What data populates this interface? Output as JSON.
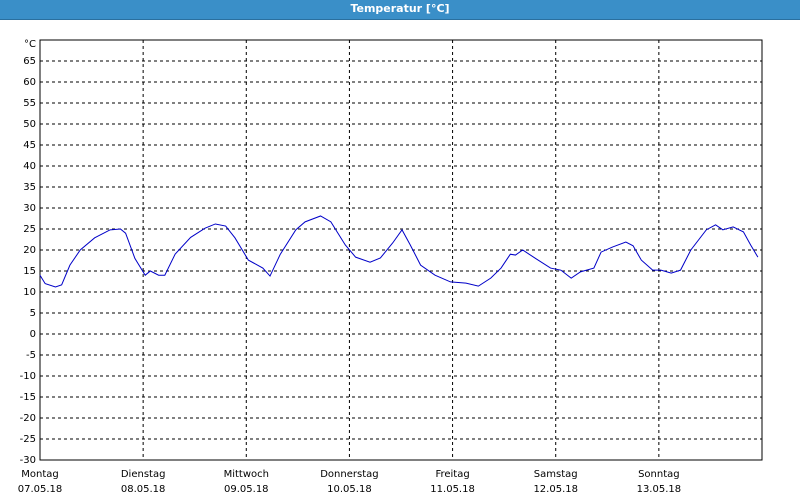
{
  "chart_data": {
    "type": "line",
    "title": "Temperatur [°C]",
    "y_unit": "°C",
    "xlim": [
      0,
      7
    ],
    "xticks": [
      {
        "value": 0,
        "label": "Montag"
      },
      {
        "value": 1,
        "label": "Dienstag"
      },
      {
        "value": 2,
        "label": "Mittwoch"
      },
      {
        "value": 3,
        "label": "Donnerstag"
      },
      {
        "value": 4,
        "label": "Freitag"
      },
      {
        "value": 5,
        "label": "Samstag"
      },
      {
        "value": 6,
        "label": "Sonntag"
      }
    ],
    "x_dates": [
      "07.05.18",
      "08.05.18",
      "09.05.18",
      "10.05.18",
      "11.05.18",
      "12.05.18",
      "13.05.18"
    ],
    "ylim": [
      -30,
      70
    ],
    "yticks": [
      -30,
      -25,
      -20,
      -15,
      -10,
      -5,
      0,
      5,
      10,
      15,
      20,
      25,
      30,
      35,
      40,
      45,
      50,
      55,
      60,
      65
    ],
    "grid": true,
    "x": [
      0,
      0.05,
      0.15,
      0.21,
      0.29,
      0.39,
      0.53,
      0.68,
      0.78,
      0.83,
      0.92,
      1.02,
      1.07,
      1.15,
      1.21,
      1.31,
      1.46,
      1.6,
      1.7,
      1.8,
      1.89,
      2.02,
      2.16,
      2.23,
      2.33,
      2.48,
      2.57,
      2.72,
      2.82,
      2.96,
      3.06,
      3.2,
      3.3,
      3.42,
      3.51,
      3.59,
      3.69,
      3.83,
      3.98,
      4.13,
      4.25,
      4.37,
      4.47,
      4.56,
      4.61,
      4.68,
      4.81,
      4.95,
      5.05,
      5.15,
      5.24,
      5.37,
      5.44,
      5.55,
      5.68,
      5.75,
      5.83,
      5.94,
      6.02,
      6.12,
      6.21,
      6.31,
      6.46,
      6.55,
      6.62,
      6.72,
      6.82,
      6.89,
      6.96
    ],
    "series": [
      {
        "color": "#0000c8",
        "values": [
          14,
          12,
          11.2,
          11.7,
          16.4,
          20,
          22.9,
          24.8,
          25,
          24,
          18,
          14,
          15,
          14,
          14,
          19,
          23,
          25.2,
          26.2,
          25.7,
          22.9,
          17.6,
          15.7,
          13.8,
          19,
          24.8,
          26.7,
          28.1,
          26.7,
          21.2,
          18.3,
          17.1,
          18.1,
          21.7,
          24.8,
          21.2,
          16.4,
          14,
          12.4,
          12.1,
          11.4,
          13.3,
          15.7,
          19,
          18.8,
          20,
          17.9,
          15.7,
          15.2,
          13.3,
          14.8,
          15.7,
          19.5,
          20.7,
          21.9,
          21,
          17.6,
          15.2,
          15.2,
          14.5,
          15.2,
          20,
          24.8,
          26,
          24.8,
          25.5,
          24.3,
          21.2,
          18.3
        ]
      }
    ]
  }
}
